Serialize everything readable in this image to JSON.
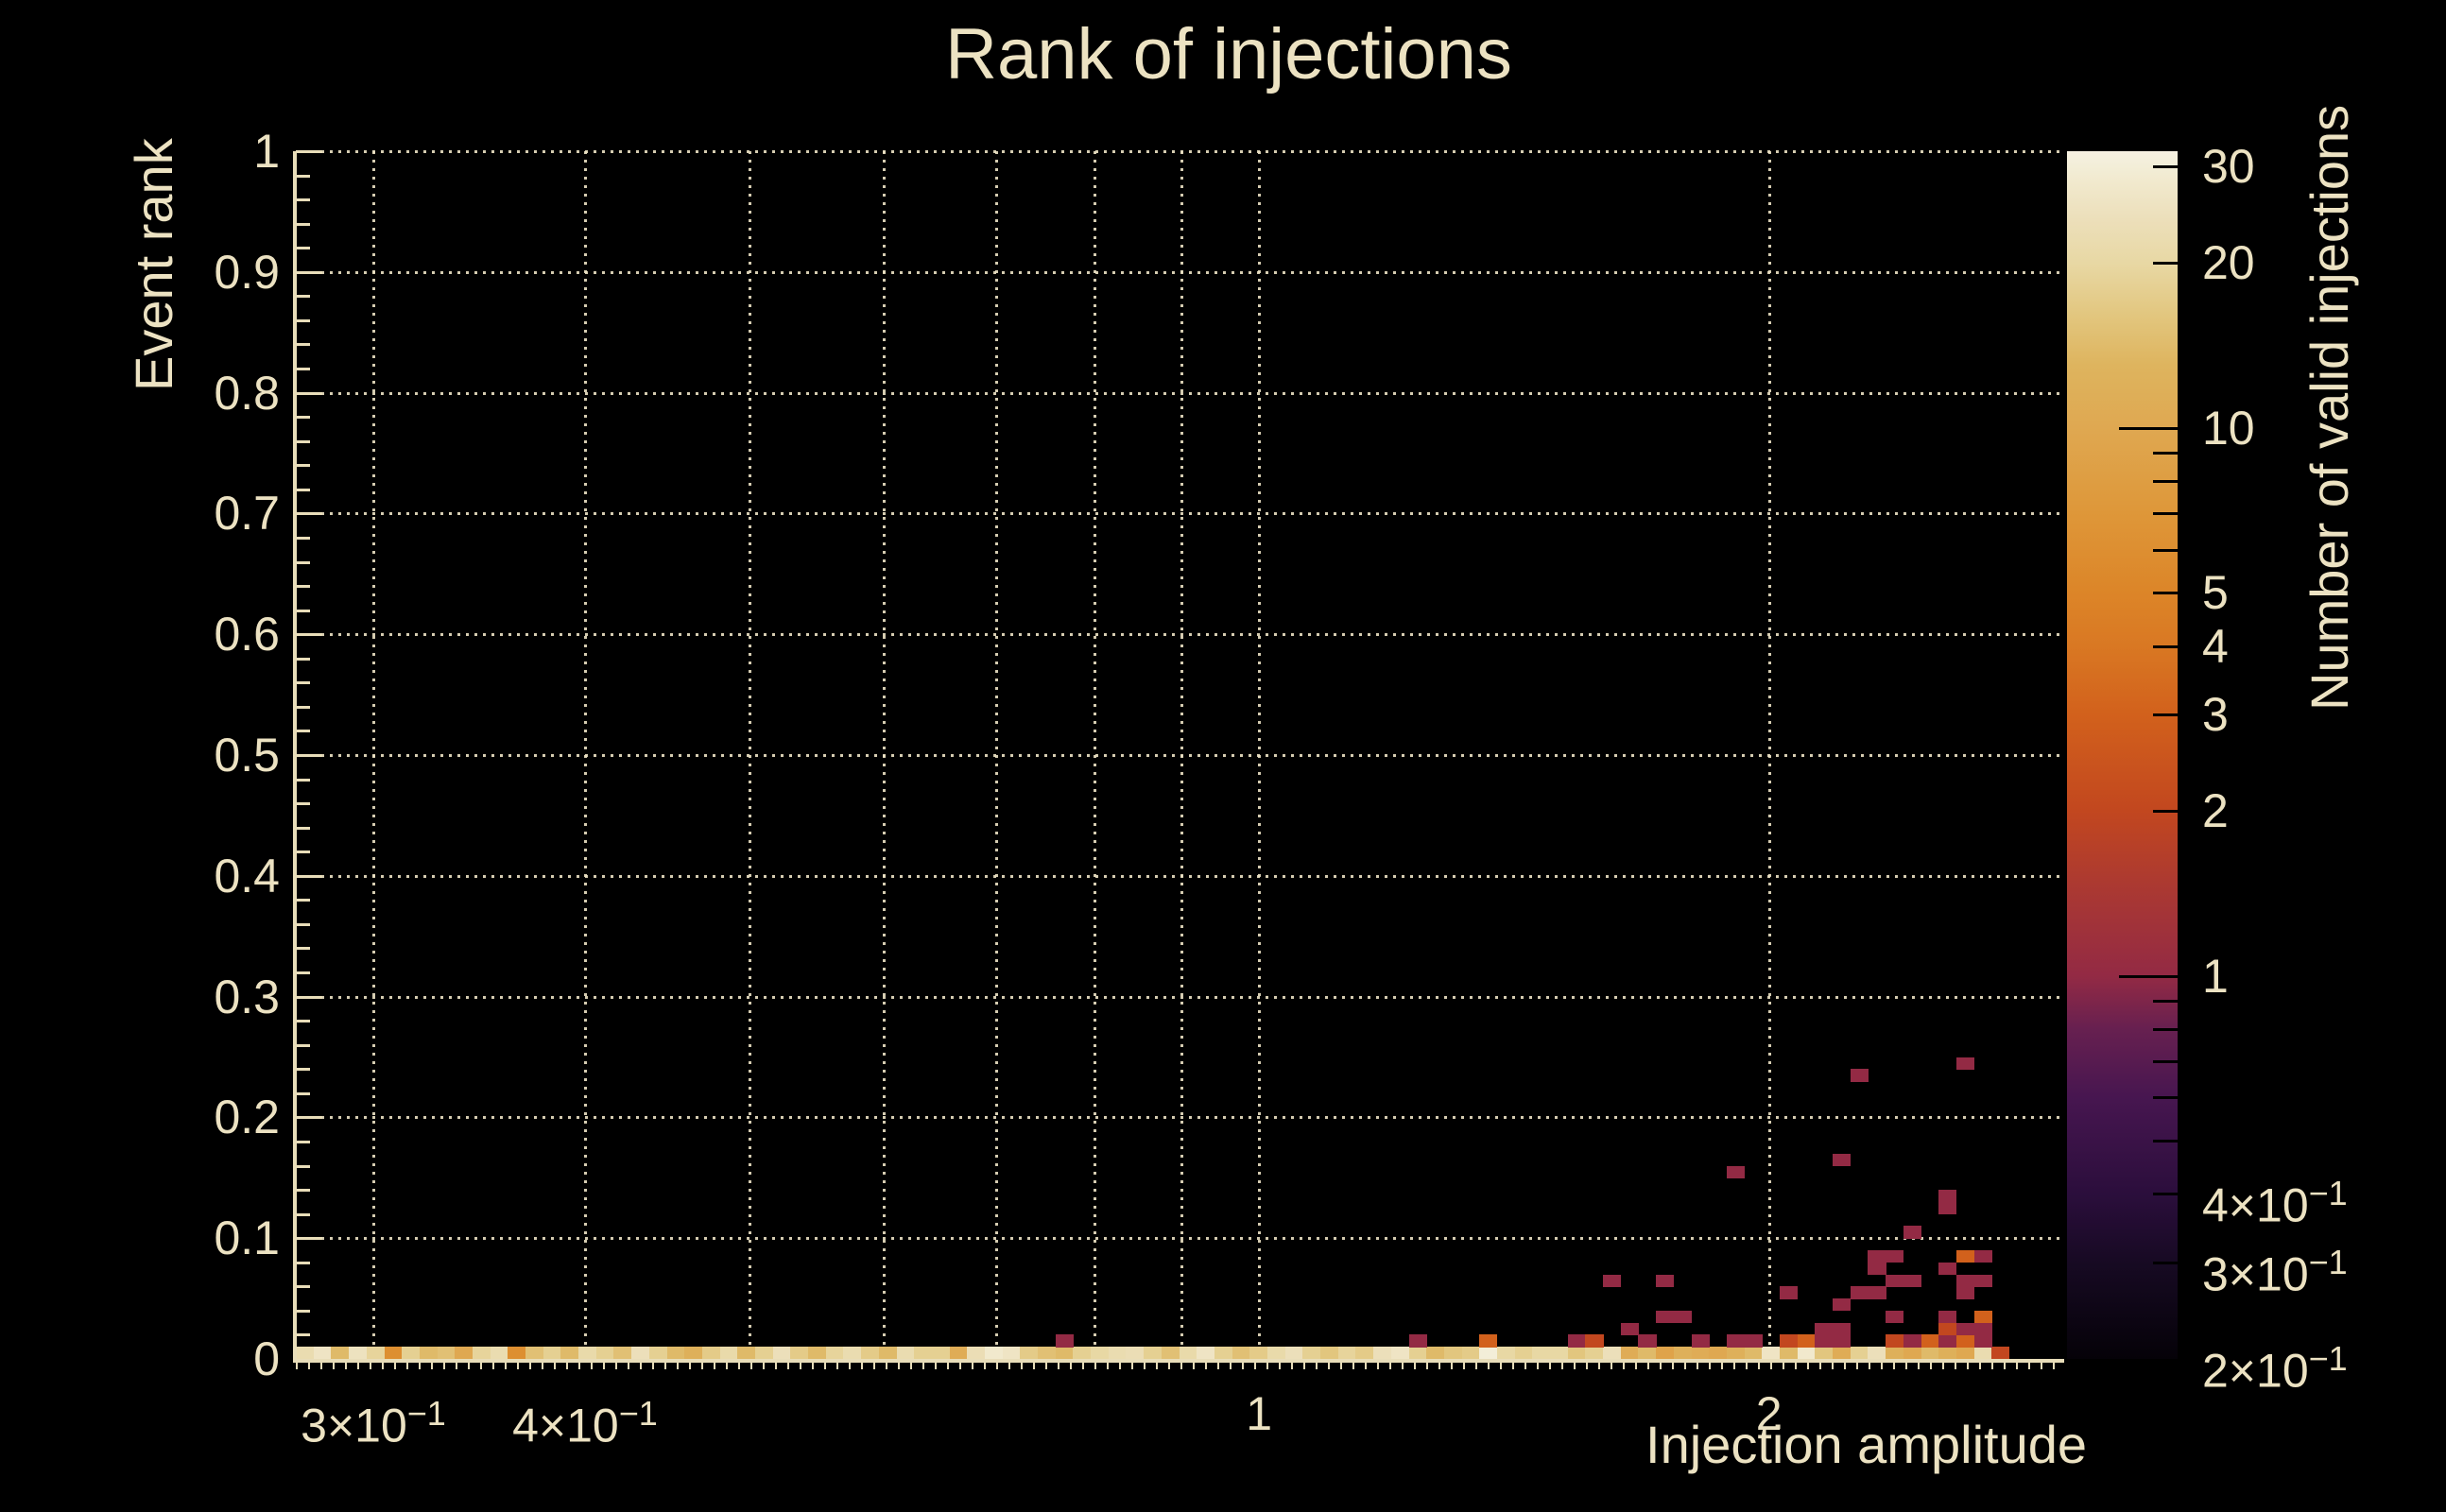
{
  "title": "Rank of injections",
  "colors": {
    "background": "#000000",
    "text": "#ece2c2",
    "axis_line": "#e8ddb9",
    "gridline": "#ece2c4"
  },
  "plot": {
    "x_axis": {
      "title": "Injection amplitude",
      "scale": "log",
      "range": [
        0.27,
        2.98
      ],
      "tick_labels": [
        {
          "value": 0.3,
          "mantissa": "3×10",
          "exponent": "−1"
        },
        {
          "value": 0.4,
          "mantissa": "4×10",
          "exponent": "−1"
        },
        {
          "value": 1,
          "mantissa": "1",
          "exponent": ""
        },
        {
          "value": 2,
          "mantissa": "2",
          "exponent": ""
        }
      ],
      "grid_values": [
        0.3,
        0.4,
        0.5,
        0.6,
        0.7,
        0.8,
        0.9,
        1.0,
        2.0
      ]
    },
    "y_axis": {
      "title": "Event rank",
      "scale": "linear",
      "range": [
        0,
        1
      ],
      "tick_labels": [
        "0",
        "0.1",
        "0.2",
        "0.3",
        "0.4",
        "0.5",
        "0.6",
        "0.7",
        "0.8",
        "0.9",
        "1"
      ],
      "tick_values": [
        0,
        0.1,
        0.2,
        0.3,
        0.4,
        0.5,
        0.6,
        0.7,
        0.8,
        0.9,
        1
      ],
      "grid_values": [
        0.1,
        0.2,
        0.3,
        0.4,
        0.5,
        0.6,
        0.7,
        0.8,
        0.9,
        1.0
      ],
      "minor_tick_step": 0.02
    },
    "colorbar": {
      "title": "Number of valid injections",
      "scale": "log",
      "range": [
        0.2,
        32
      ],
      "tick_labels": [
        {
          "value": 30,
          "mantissa": "30",
          "exponent": ""
        },
        {
          "value": 20,
          "mantissa": "20",
          "exponent": ""
        },
        {
          "value": 10,
          "mantissa": "10",
          "exponent": ""
        },
        {
          "value": 5,
          "mantissa": "5",
          "exponent": ""
        },
        {
          "value": 4,
          "mantissa": "4",
          "exponent": ""
        },
        {
          "value": 3,
          "mantissa": "3",
          "exponent": ""
        },
        {
          "value": 2,
          "mantissa": "2",
          "exponent": ""
        },
        {
          "value": 1,
          "mantissa": "1",
          "exponent": ""
        },
        {
          "value": 0.4,
          "mantissa": "4×10",
          "exponent": "−1"
        },
        {
          "value": 0.3,
          "mantissa": "3×10",
          "exponent": "−1"
        },
        {
          "value": 0.2,
          "mantissa": "2×10",
          "exponent": "−1"
        }
      ],
      "minor_ticks": [
        0.3,
        0.4,
        0.5,
        0.6,
        0.7,
        0.8,
        0.9,
        2,
        3,
        4,
        5,
        6,
        7,
        8,
        9,
        20,
        30
      ],
      "major_ticks": [
        1,
        10
      ],
      "palette_stops": [
        [
          0.2,
          "#050208"
        ],
        [
          0.3,
          "#170a23"
        ],
        [
          0.4,
          "#2b0e3c"
        ],
        [
          0.6,
          "#471650"
        ],
        [
          0.8,
          "#672050"
        ],
        [
          1.0,
          "#932a44"
        ],
        [
          1.5,
          "#ad3a30"
        ],
        [
          2,
          "#c2471f"
        ],
        [
          3,
          "#d2611c"
        ],
        [
          4,
          "#d97823"
        ],
        [
          5,
          "#dc8528"
        ],
        [
          7,
          "#de9739"
        ],
        [
          10,
          "#dfa851"
        ],
        [
          13,
          "#deb45e"
        ],
        [
          16,
          "#e2c67e"
        ],
        [
          20,
          "#e8d8a4"
        ],
        [
          24,
          "#ecdfba"
        ],
        [
          28,
          "#f1e9cd"
        ],
        [
          30,
          "#f3eed8"
        ],
        [
          32,
          "#f6f1e2"
        ]
      ]
    }
  },
  "chart_data": {
    "type": "heatmap",
    "title": "Rank of injections",
    "xlabel": "Injection amplitude",
    "ylabel": "Event rank",
    "zlabel": "Number of valid injections",
    "x_bins": 100,
    "y_bins": 100,
    "x_range": [
      0.27,
      2.98
    ],
    "y_range": [
      0,
      1
    ],
    "z_range": [
      0.2,
      32
    ],
    "x_scale": "log",
    "z_scale": "log",
    "grid": true,
    "bottom_row_counts": [
      22,
      26,
      14,
      25,
      19,
      6,
      18,
      14,
      15,
      10,
      19,
      22,
      6,
      15,
      18,
      14,
      21,
      18,
      15,
      24,
      18,
      14,
      12,
      17,
      21,
      14,
      18,
      24,
      17,
      14,
      19,
      22,
      17,
      14,
      22,
      18,
      18,
      11,
      23,
      28,
      26,
      17,
      15,
      14,
      18,
      20,
      22,
      23,
      18,
      15,
      21,
      26,
      18,
      15,
      17,
      21,
      24,
      18,
      16,
      19,
      17,
      24,
      26,
      18,
      14,
      16,
      17,
      30,
      20,
      18,
      20,
      20,
      16,
      18,
      24,
      11,
      14,
      9,
      12,
      11,
      10,
      12,
      14,
      26,
      14,
      28,
      16,
      11,
      18,
      24,
      12,
      10,
      14,
      12,
      10,
      22,
      2
    ],
    "scatter_cells": [
      [
        43,
        1,
        1
      ],
      [
        63,
        1,
        1
      ],
      [
        67,
        1,
        3
      ],
      [
        72,
        1,
        1
      ],
      [
        73,
        1,
        2
      ],
      [
        76,
        1,
        1
      ],
      [
        79,
        1,
        1
      ],
      [
        81,
        1,
        1
      ],
      [
        82,
        1,
        1
      ],
      [
        84,
        1,
        2
      ],
      [
        85,
        1,
        3
      ],
      [
        86,
        1,
        1
      ],
      [
        87,
        1,
        1
      ],
      [
        90,
        1,
        2
      ],
      [
        91,
        1,
        1
      ],
      [
        92,
        1,
        3
      ],
      [
        93,
        1,
        1
      ],
      [
        94,
        1,
        3
      ],
      [
        95,
        1,
        1
      ],
      [
        75,
        2,
        1
      ],
      [
        86,
        2,
        1
      ],
      [
        87,
        2,
        1
      ],
      [
        93,
        2,
        2
      ],
      [
        94,
        2,
        1
      ],
      [
        95,
        2,
        1
      ],
      [
        77,
        3,
        1
      ],
      [
        78,
        3,
        1
      ],
      [
        90,
        3,
        1
      ],
      [
        93,
        3,
        1
      ],
      [
        95,
        3,
        3
      ],
      [
        87,
        4,
        1
      ],
      [
        84,
        5,
        1
      ],
      [
        88,
        5,
        1
      ],
      [
        89,
        5,
        1
      ],
      [
        94,
        5,
        1
      ],
      [
        74,
        6,
        1
      ],
      [
        77,
        6,
        1
      ],
      [
        90,
        6,
        1
      ],
      [
        91,
        6,
        1
      ],
      [
        94,
        6,
        1
      ],
      [
        95,
        6,
        1
      ],
      [
        89,
        7,
        1
      ],
      [
        93,
        7,
        1
      ],
      [
        89,
        8,
        1
      ],
      [
        90,
        8,
        1
      ],
      [
        94,
        8,
        3
      ],
      [
        95,
        8,
        1
      ],
      [
        91,
        10,
        1
      ],
      [
        93,
        12,
        1
      ],
      [
        93,
        13,
        1
      ],
      [
        81,
        15,
        1
      ],
      [
        87,
        16,
        1
      ],
      [
        88,
        23,
        1
      ],
      [
        94,
        24,
        1
      ]
    ]
  }
}
